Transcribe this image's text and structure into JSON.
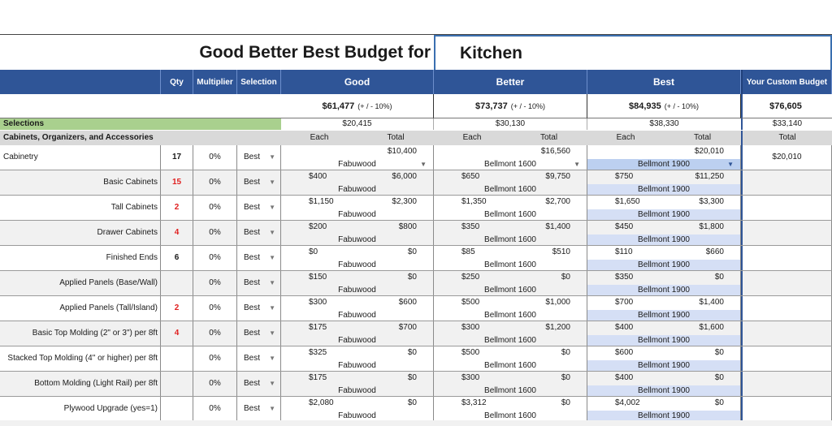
{
  "title": "Good Better Best Budget for",
  "room": "Kitchen",
  "headers": {
    "qty": "Qty",
    "multiplier": "Multiplier",
    "selection": "Selection",
    "good": "Good",
    "better": "Better",
    "best": "Best",
    "custom": "Your Custom Budget"
  },
  "totals": {
    "good": "$61,477",
    "better": "$73,737",
    "best": "$84,935",
    "range": "(+ / - 10%)",
    "custom": "$76,605"
  },
  "selections": {
    "label": "Selections",
    "good": "$20,415",
    "better": "$30,130",
    "best": "$38,330",
    "custom": "$33,140"
  },
  "section": {
    "label": "Cabinets, Organizers, and Accessories",
    "each": "Each",
    "total": "Total",
    "custom_total": "Total"
  },
  "rows": [
    {
      "label": "Cabinetry",
      "qty": "17",
      "qty_red": false,
      "mult": "0%",
      "sel": "Best",
      "good": {
        "each": "",
        "total": "$10,400",
        "name": "Fabuwood"
      },
      "better": {
        "each": "",
        "total": "$16,560",
        "name": "Bellmont 1600"
      },
      "best": {
        "each": "",
        "total": "$20,010",
        "name": "Bellmont 1900"
      },
      "custom": "$20,010"
    },
    {
      "label": "Basic Cabinets",
      "qty": "15",
      "qty_red": true,
      "mult": "0%",
      "sel": "Best",
      "good": {
        "each": "$400",
        "total": "$6,000",
        "name": "Fabuwood"
      },
      "better": {
        "each": "$650",
        "total": "$9,750",
        "name": "Bellmont 1600"
      },
      "best": {
        "each": "$750",
        "total": "$11,250",
        "name": "Bellmont 1900"
      },
      "custom": ""
    },
    {
      "label": "Tall Cabinets",
      "qty": "2",
      "qty_red": true,
      "mult": "0%",
      "sel": "Best",
      "good": {
        "each": "$1,150",
        "total": "$2,300",
        "name": "Fabuwood"
      },
      "better": {
        "each": "$1,350",
        "total": "$2,700",
        "name": "Bellmont 1600"
      },
      "best": {
        "each": "$1,650",
        "total": "$3,300",
        "name": "Bellmont 1900"
      },
      "custom": ""
    },
    {
      "label": "Drawer Cabinets",
      "qty": "4",
      "qty_red": true,
      "mult": "0%",
      "sel": "Best",
      "good": {
        "each": "$200",
        "total": "$800",
        "name": "Fabuwood"
      },
      "better": {
        "each": "$350",
        "total": "$1,400",
        "name": "Bellmont 1600"
      },
      "best": {
        "each": "$450",
        "total": "$1,800",
        "name": "Bellmont 1900"
      },
      "custom": ""
    },
    {
      "label": "Finished Ends",
      "qty": "6",
      "qty_red": false,
      "mult": "0%",
      "sel": "Best",
      "good": {
        "each": "$0",
        "total": "$0",
        "name": "Fabuwood"
      },
      "better": {
        "each": "$85",
        "total": "$510",
        "name": "Bellmont 1600"
      },
      "best": {
        "each": "$110",
        "total": "$660",
        "name": "Bellmont 1900"
      },
      "custom": ""
    },
    {
      "label": "Applied Panels (Base/Wall)",
      "qty": "",
      "qty_red": false,
      "mult": "0%",
      "sel": "Best",
      "good": {
        "each": "$150",
        "total": "$0",
        "name": "Fabuwood"
      },
      "better": {
        "each": "$250",
        "total": "$0",
        "name": "Bellmont 1600"
      },
      "best": {
        "each": "$350",
        "total": "$0",
        "name": "Bellmont 1900"
      },
      "custom": ""
    },
    {
      "label": "Applied Panels (Tall/Island)",
      "qty": "2",
      "qty_red": true,
      "mult": "0%",
      "sel": "Best",
      "good": {
        "each": "$300",
        "total": "$600",
        "name": "Fabuwood"
      },
      "better": {
        "each": "$500",
        "total": "$1,000",
        "name": "Bellmont 1600"
      },
      "best": {
        "each": "$700",
        "total": "$1,400",
        "name": "Bellmont 1900"
      },
      "custom": ""
    },
    {
      "label": "Basic Top Molding (2\" or 3\") per 8ft",
      "qty": "4",
      "qty_red": true,
      "mult": "0%",
      "sel": "Best",
      "good": {
        "each": "$175",
        "total": "$700",
        "name": "Fabuwood"
      },
      "better": {
        "each": "$300",
        "total": "$1,200",
        "name": "Bellmont 1600"
      },
      "best": {
        "each": "$400",
        "total": "$1,600",
        "name": "Bellmont 1900"
      },
      "custom": ""
    },
    {
      "label": "Stacked Top Molding (4\" or higher) per 8ft",
      "qty": "",
      "qty_red": false,
      "mult": "0%",
      "sel": "Best",
      "good": {
        "each": "$325",
        "total": "$0",
        "name": "Fabuwood"
      },
      "better": {
        "each": "$500",
        "total": "$0",
        "name": "Bellmont 1600"
      },
      "best": {
        "each": "$600",
        "total": "$0",
        "name": "Bellmont 1900"
      },
      "custom": ""
    },
    {
      "label": "Bottom Molding (Light Rail) per 8ft",
      "qty": "",
      "qty_red": false,
      "mult": "0%",
      "sel": "Best",
      "good": {
        "each": "$175",
        "total": "$0",
        "name": "Fabuwood"
      },
      "better": {
        "each": "$300",
        "total": "$0",
        "name": "Bellmont 1600"
      },
      "best": {
        "each": "$400",
        "total": "$0",
        "name": "Bellmont 1900"
      },
      "custom": ""
    },
    {
      "label": "Plywood Upgrade (yes=1)",
      "qty": "",
      "qty_red": false,
      "mult": "0%",
      "sel": "Best",
      "good": {
        "each": "$2,080",
        "total": "$0",
        "name": "Fabuwood"
      },
      "better": {
        "each": "$3,312",
        "total": "$0",
        "name": "Bellmont 1600"
      },
      "best": {
        "each": "$4,002",
        "total": "$0",
        "name": "Bellmont 1900"
      },
      "custom": ""
    }
  ],
  "colors": {
    "header_blue": "#2f5597",
    "selections_green": "#a9d08e",
    "best_highlight": "#d5dff5",
    "qty_red": "#e02020"
  }
}
